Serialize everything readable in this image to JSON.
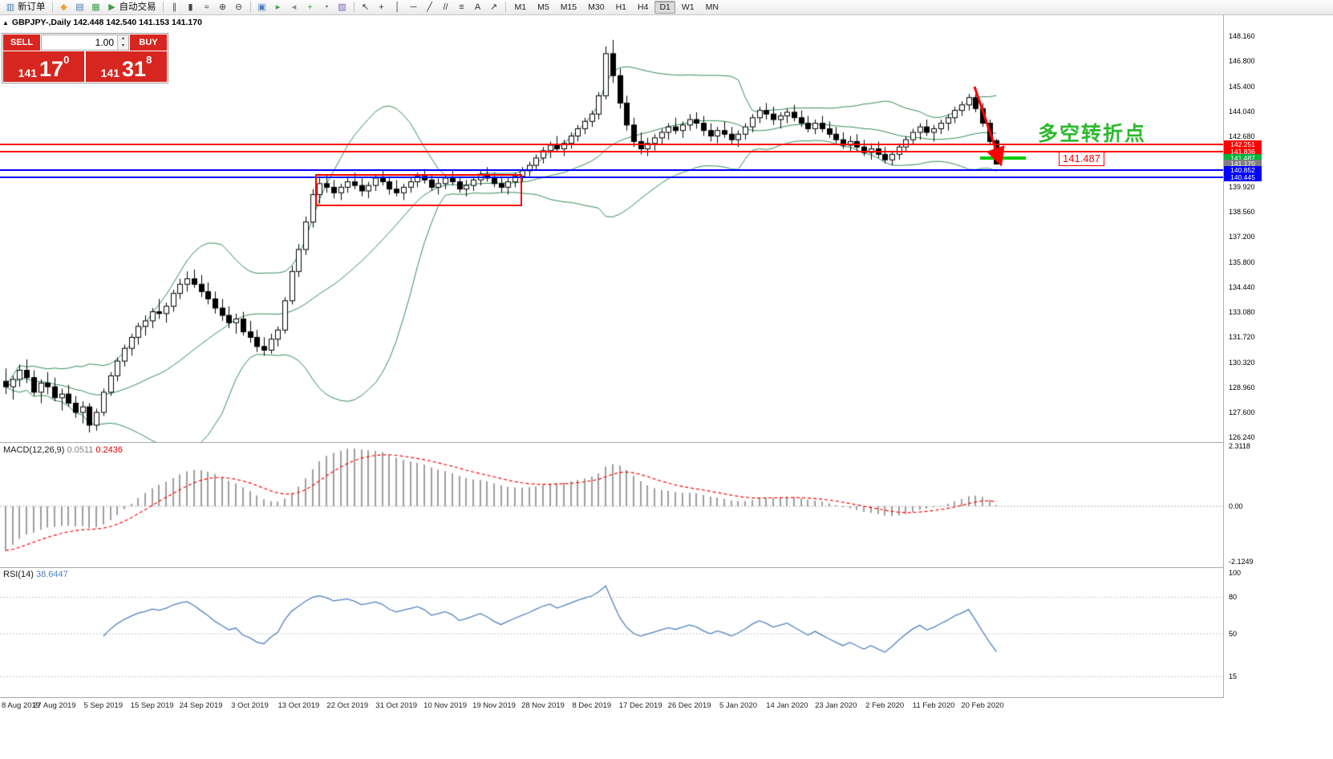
{
  "toolbar": {
    "new_order_label": "新订单",
    "autotrading_label": "自动交易",
    "timeframes": [
      "M1",
      "M5",
      "M15",
      "M30",
      "H1",
      "H4",
      "D1",
      "W1",
      "MN"
    ],
    "active_timeframe": "D1",
    "groups": [
      {
        "items": [
          {
            "name": "new-order-button",
            "icon_name": "new-order-icon",
            "glyph": "▥",
            "color": "#4a7ebb",
            "label": "新订单"
          }
        ]
      },
      {
        "items": [
          {
            "name": "megaphone-icon",
            "glyph": "◆",
            "color": "#e8a33d"
          },
          {
            "name": "market-watch-icon",
            "glyph": "▤",
            "color": "#4a7ebb"
          },
          {
            "name": "data-window-icon",
            "glyph": "▦",
            "color": "#3f9e4d"
          },
          {
            "name": "autotrading-button",
            "icon_name": "autotrading-play-icon",
            "glyph": "▶",
            "color": "#3f9e4d",
            "label": "自动交易"
          }
        ]
      },
      {
        "items": [
          {
            "name": "bar-chart-icon",
            "glyph": "∥",
            "color": "#444444"
          },
          {
            "name": "candlestick-chart-icon",
            "glyph": "▮",
            "color": "#444444"
          },
          {
            "name": "line-chart-icon",
            "glyph": "≈",
            "color": "#444444"
          },
          {
            "name": "zoom-in-icon",
            "glyph": "⊕",
            "color": "#444444"
          },
          {
            "name": "zoom-out-icon",
            "glyph": "⊖",
            "color": "#444444"
          }
        ]
      },
      {
        "items": [
          {
            "name": "tile-windows-icon",
            "glyph": "▣",
            "color": "#4a7ebb"
          },
          {
            "name": "auto-scroll-icon",
            "glyph": "▸",
            "color": "#3f9e4d"
          },
          {
            "name": "chart-shift-icon",
            "glyph": "◂",
            "color": "#8a8a8a"
          },
          {
            "name": "indicators-icon",
            "glyph": "+",
            "color": "#3f9e4d"
          },
          {
            "name": "periods-icon",
            "glyph": "◔",
            "color": "#555555"
          },
          {
            "name": "templates-icon",
            "glyph": "▨",
            "color": "#7b5cb8"
          }
        ]
      },
      {
        "items": [
          {
            "name": "cursor-icon",
            "glyph": "↖",
            "color": "#333333"
          },
          {
            "name": "crosshair-icon",
            "glyph": "+",
            "color": "#333333"
          },
          {
            "name": "vertical-line-icon",
            "glyph": "│",
            "color": "#333333"
          },
          {
            "name": "horizontal-line-icon",
            "glyph": "─",
            "color": "#333333"
          },
          {
            "name": "trendline-icon",
            "glyph": "╱",
            "color": "#333333"
          },
          {
            "name": "channel-icon",
            "glyph": "//",
            "color": "#333333"
          },
          {
            "name": "fibonacci-icon",
            "glyph": "≡",
            "color": "#333333"
          },
          {
            "name": "text-icon",
            "glyph": "A",
            "color": "#333333"
          },
          {
            "name": "arrow-tools-icon",
            "glyph": "↗",
            "color": "#333333"
          }
        ]
      },
      {
        "type": "timeframes"
      }
    ]
  },
  "chart": {
    "collapse_glyph": "▲",
    "title": "GBPJPY-,Daily 142.448 142.540 141.153 141.170"
  },
  "trade_panel": {
    "sell_label": "SELL",
    "buy_label": "BUY",
    "volume": "1.00",
    "sell_price": {
      "major": "141",
      "pips": "17",
      "point": "0"
    },
    "buy_price": {
      "major": "141",
      "pips": "31",
      "point": "8"
    }
  },
  "price_scale": {
    "ticks": [
      "148.160",
      "146.800",
      "145.400",
      "144.040",
      "142.680",
      "139.920",
      "138.560",
      "137.200",
      "135.800",
      "134.440",
      "133.080",
      "131.720",
      "130.320",
      "128.960",
      "127.600",
      "126.240"
    ],
    "labels": [
      {
        "text": "142.251",
        "value": 142.251,
        "bg": "#ff0000"
      },
      {
        "text": "141.836",
        "value": 141.836,
        "bg": "#ff0000"
      },
      {
        "text": "141.487",
        "value": 141.487,
        "bg": "#00b23b"
      },
      {
        "text": "141.170",
        "value": 141.17,
        "bg": "#7f7f7f"
      },
      {
        "text": "140.852",
        "value": 140.852,
        "bg": "#0000ff"
      },
      {
        "text": "140.445",
        "value": 140.445,
        "bg": "#0000ff"
      }
    ]
  },
  "annotations": {
    "turning_point_text": "多空转折点",
    "price_callout": "141.487"
  },
  "indicators": {
    "macd": {
      "label": "MACD(12,26,9)",
      "value1": "0.0511",
      "value2": "0.2436",
      "scale": [
        "2.3118",
        "0.00",
        "-2.1249"
      ],
      "scale_max": 2.3118,
      "scale_min": -2.1249
    },
    "rsi": {
      "label": "RSI(14)",
      "value": "38.6447",
      "scale": [
        "100",
        "80",
        "50",
        "15"
      ],
      "levels": [
        80,
        50,
        15
      ]
    }
  },
  "time_axis": {
    "labels": [
      "8 Aug 2019",
      "27 Aug 2019",
      "5 Sep 2019",
      "15 Sep 2019",
      "24 Sep 2019",
      "3 Oct 2019",
      "13 Oct 2019",
      "22 Oct 2019",
      "31 Oct 2019",
      "10 Nov 2019",
      "19 Nov 2019",
      "28 Nov 2019",
      "8 Dec 2019",
      "17 Dec 2019",
      "26 Dec 2019",
      "5 Jan 2020",
      "14 Jan 2020",
      "23 Jan 2020",
      "2 Feb 2020",
      "11 Feb 2020",
      "20 Feb 2020"
    ]
  },
  "colors": {
    "trade_red": "#d6261f",
    "line_red": "#ff0000",
    "line_blue": "#0000ff",
    "support_green": "#00cc00",
    "annotation_green": "#2db92d",
    "bollinger_green": "#2e8b57",
    "macd_histogram": "#9e9e9e",
    "macd_signal": "#ff0000",
    "rsi_blue": "#4f81bd",
    "candle_up": "#ffffff",
    "candle_down": "#000000"
  },
  "chart_data": {
    "type": "candlestick",
    "symbol": "GBPJPY-",
    "timeframe": "Daily",
    "title_ohlc": {
      "open": "142.448",
      "high": "142.540",
      "low": "141.153",
      "close": "141.170"
    },
    "price_range_top": 148.16,
    "price_range_bottom": 126.24,
    "candles": [
      [
        129.3,
        130.0,
        128.6,
        129.0
      ],
      [
        129.0,
        129.6,
        128.3,
        129.4
      ],
      [
        129.4,
        130.2,
        129.0,
        129.9
      ],
      [
        129.9,
        130.5,
        129.2,
        129.5
      ],
      [
        129.5,
        129.9,
        128.5,
        128.7
      ],
      [
        128.7,
        129.4,
        128.1,
        129.2
      ],
      [
        129.2,
        129.8,
        128.6,
        129.0
      ],
      [
        129.0,
        129.5,
        128.2,
        128.4
      ],
      [
        128.4,
        128.9,
        127.7,
        128.6
      ],
      [
        128.6,
        129.1,
        127.9,
        128.1
      ],
      [
        128.1,
        128.5,
        127.3,
        127.6
      ],
      [
        127.6,
        128.2,
        127.0,
        127.9
      ],
      [
        127.9,
        128.1,
        126.5,
        126.9
      ],
      [
        126.9,
        127.8,
        126.6,
        127.6
      ],
      [
        127.6,
        128.9,
        127.4,
        128.7
      ],
      [
        128.7,
        129.8,
        128.5,
        129.6
      ],
      [
        129.6,
        130.6,
        129.3,
        130.4
      ],
      [
        130.4,
        131.3,
        130.1,
        131.1
      ],
      [
        131.1,
        131.9,
        130.7,
        131.7
      ],
      [
        131.7,
        132.5,
        131.3,
        132.3
      ],
      [
        132.3,
        132.9,
        131.8,
        132.6
      ],
      [
        132.6,
        133.3,
        132.2,
        133.1
      ],
      [
        133.1,
        133.8,
        132.7,
        133.0
      ],
      [
        133.0,
        133.6,
        132.5,
        133.4
      ],
      [
        133.4,
        134.3,
        133.1,
        134.1
      ],
      [
        134.1,
        134.9,
        133.8,
        134.6
      ],
      [
        134.6,
        135.3,
        134.2,
        134.9
      ],
      [
        134.9,
        135.4,
        134.4,
        134.6
      ],
      [
        134.6,
        135.1,
        133.9,
        134.2
      ],
      [
        134.2,
        134.7,
        133.5,
        133.8
      ],
      [
        133.8,
        134.2,
        133.0,
        133.3
      ],
      [
        133.3,
        133.8,
        132.6,
        132.9
      ],
      [
        132.9,
        133.4,
        132.2,
        132.5
      ],
      [
        132.5,
        133.0,
        131.9,
        132.7
      ],
      [
        132.7,
        133.1,
        131.8,
        132.0
      ],
      [
        132.0,
        132.6,
        131.4,
        131.7
      ],
      [
        131.7,
        132.1,
        130.9,
        131.2
      ],
      [
        131.2,
        131.7,
        130.7,
        131.0
      ],
      [
        131.0,
        131.9,
        130.8,
        131.6
      ],
      [
        131.6,
        132.3,
        131.2,
        132.1
      ],
      [
        132.1,
        133.9,
        131.9,
        133.7
      ],
      [
        133.7,
        135.6,
        133.5,
        135.3
      ],
      [
        135.3,
        136.8,
        135.0,
        136.5
      ],
      [
        136.5,
        138.3,
        136.2,
        138.0
      ],
      [
        138.0,
        139.8,
        137.7,
        139.5
      ],
      [
        139.5,
        140.5,
        139.0,
        140.1
      ],
      [
        140.1,
        140.6,
        139.6,
        139.9
      ],
      [
        139.9,
        140.3,
        139.3,
        139.6
      ],
      [
        139.6,
        140.1,
        139.2,
        139.9
      ],
      [
        139.9,
        140.5,
        139.6,
        140.2
      ],
      [
        140.2,
        140.7,
        139.8,
        140.0
      ],
      [
        140.0,
        140.4,
        139.4,
        139.7
      ],
      [
        139.7,
        140.2,
        139.3,
        140.0
      ],
      [
        140.0,
        140.6,
        139.7,
        140.4
      ],
      [
        140.4,
        140.8,
        140.0,
        140.2
      ],
      [
        140.2,
        140.5,
        139.5,
        139.8
      ],
      [
        139.8,
        140.3,
        139.4,
        139.6
      ],
      [
        139.6,
        140.1,
        139.2,
        139.9
      ],
      [
        139.9,
        140.4,
        139.6,
        140.2
      ],
      [
        140.2,
        140.7,
        139.9,
        140.5
      ],
      [
        140.5,
        140.9,
        140.1,
        140.3
      ],
      [
        140.3,
        140.6,
        139.7,
        139.9
      ],
      [
        139.9,
        140.4,
        139.5,
        140.1
      ],
      [
        140.1,
        140.6,
        139.8,
        140.4
      ],
      [
        140.4,
        140.8,
        140.0,
        140.2
      ],
      [
        140.2,
        140.5,
        139.6,
        139.8
      ],
      [
        139.8,
        140.3,
        139.4,
        140.0
      ],
      [
        140.0,
        140.5,
        139.7,
        140.3
      ],
      [
        140.3,
        140.8,
        140.0,
        140.6
      ],
      [
        140.6,
        141.0,
        140.2,
        140.4
      ],
      [
        140.4,
        140.7,
        139.9,
        140.1
      ],
      [
        140.1,
        140.5,
        139.6,
        139.9
      ],
      [
        139.9,
        140.4,
        139.5,
        140.2
      ],
      [
        140.2,
        140.7,
        139.9,
        140.5
      ],
      [
        140.5,
        141.0,
        140.2,
        140.8
      ],
      [
        140.8,
        141.3,
        140.5,
        141.1
      ],
      [
        141.1,
        141.7,
        140.8,
        141.5
      ],
      [
        141.5,
        142.1,
        141.2,
        141.9
      ],
      [
        141.9,
        142.4,
        141.5,
        142.2
      ],
      [
        142.2,
        142.7,
        141.8,
        142.0
      ],
      [
        142.0,
        142.5,
        141.6,
        142.3
      ],
      [
        142.3,
        142.9,
        142.0,
        142.7
      ],
      [
        142.7,
        143.3,
        142.4,
        143.1
      ],
      [
        143.1,
        143.7,
        142.8,
        143.5
      ],
      [
        143.5,
        144.1,
        143.2,
        143.9
      ],
      [
        143.9,
        145.1,
        143.6,
        144.9
      ],
      [
        144.9,
        147.6,
        144.7,
        147.2
      ],
      [
        147.2,
        147.95,
        145.6,
        146.0
      ],
      [
        146.0,
        146.4,
        144.2,
        144.5
      ],
      [
        144.5,
        144.9,
        143.0,
        143.3
      ],
      [
        143.3,
        143.7,
        142.1,
        142.4
      ],
      [
        142.4,
        142.9,
        141.7,
        142.0
      ],
      [
        142.0,
        142.6,
        141.6,
        142.3
      ],
      [
        142.3,
        142.8,
        141.9,
        142.6
      ],
      [
        142.6,
        143.1,
        142.2,
        142.9
      ],
      [
        142.9,
        143.4,
        142.5,
        143.2
      ],
      [
        143.2,
        143.7,
        142.8,
        143.0
      ],
      [
        143.0,
        143.5,
        142.6,
        143.3
      ],
      [
        143.3,
        143.9,
        143.0,
        143.6
      ],
      [
        143.6,
        144.0,
        143.1,
        143.4
      ],
      [
        143.4,
        143.8,
        142.7,
        143.0
      ],
      [
        143.0,
        143.4,
        142.4,
        142.7
      ],
      [
        142.7,
        143.2,
        142.3,
        143.0
      ],
      [
        143.0,
        143.5,
        142.6,
        142.8
      ],
      [
        142.8,
        143.2,
        142.2,
        142.5
      ],
      [
        142.5,
        143.0,
        142.1,
        142.8
      ],
      [
        142.8,
        143.4,
        142.5,
        143.2
      ],
      [
        143.2,
        143.9,
        142.9,
        143.7
      ],
      [
        143.7,
        144.3,
        143.4,
        144.1
      ],
      [
        144.1,
        144.5,
        143.6,
        143.9
      ],
      [
        143.9,
        144.3,
        143.3,
        143.6
      ],
      [
        143.6,
        144.0,
        143.1,
        143.8
      ],
      [
        143.8,
        144.2,
        143.4,
        144.0
      ],
      [
        144.0,
        144.4,
        143.5,
        143.7
      ],
      [
        143.7,
        144.1,
        143.2,
        143.4
      ],
      [
        143.4,
        143.8,
        142.9,
        143.1
      ],
      [
        143.1,
        143.6,
        142.8,
        143.4
      ],
      [
        143.4,
        143.8,
        142.9,
        143.1
      ],
      [
        143.1,
        143.5,
        142.6,
        142.8
      ],
      [
        142.8,
        143.2,
        142.3,
        142.5
      ],
      [
        142.5,
        142.9,
        142.0,
        142.2
      ],
      [
        142.2,
        142.7,
        141.8,
        142.4
      ],
      [
        142.4,
        142.8,
        141.9,
        142.1
      ],
      [
        142.1,
        142.5,
        141.6,
        141.8
      ],
      [
        141.8,
        142.3,
        141.4,
        142.0
      ],
      [
        142.0,
        142.4,
        141.5,
        141.7
      ],
      [
        141.7,
        142.1,
        141.2,
        141.4
      ],
      [
        141.4,
        141.9,
        141.1,
        141.7
      ],
      [
        141.7,
        142.3,
        141.4,
        142.1
      ],
      [
        142.1,
        142.7,
        141.8,
        142.5
      ],
      [
        142.5,
        143.1,
        142.2,
        142.9
      ],
      [
        142.9,
        143.4,
        142.5,
        143.2
      ],
      [
        143.2,
        143.6,
        142.7,
        142.9
      ],
      [
        142.9,
        143.3,
        142.4,
        143.1
      ],
      [
        143.1,
        143.6,
        142.8,
        143.4
      ],
      [
        143.4,
        143.9,
        143.0,
        143.7
      ],
      [
        143.7,
        144.3,
        143.4,
        144.1
      ],
      [
        144.1,
        144.6,
        143.8,
        144.4
      ],
      [
        144.4,
        145.0,
        144.1,
        144.8
      ],
      [
        144.8,
        145.0,
        144.0,
        144.2
      ],
      [
        144.2,
        144.5,
        143.2,
        143.4
      ],
      [
        143.4,
        143.6,
        142.2,
        142.4
      ],
      [
        142.45,
        142.54,
        141.15,
        141.17
      ]
    ],
    "overlays": {
      "bollinger_bands": {
        "period": 20,
        "deviation": 2
      },
      "horizontal_lines": [
        {
          "name": "resistance-line-upper",
          "price": 142.251,
          "color": "#ff0000"
        },
        {
          "name": "resistance-line-lower",
          "price": 141.836,
          "color": "#ff0000"
        },
        {
          "name": "support-line-upper",
          "price": 140.852,
          "color": "#0000ff"
        },
        {
          "name": "support-line-lower",
          "price": 140.445,
          "color": "#0000ff"
        }
      ],
      "turning_segment": {
        "price": 141.487,
        "color": "#00cc00"
      }
    },
    "macd": {
      "params": [
        12,
        26,
        9
      ],
      "current": [
        0.0511,
        0.2436
      ]
    },
    "rsi": {
      "period": 14,
      "current": 38.6447
    }
  }
}
